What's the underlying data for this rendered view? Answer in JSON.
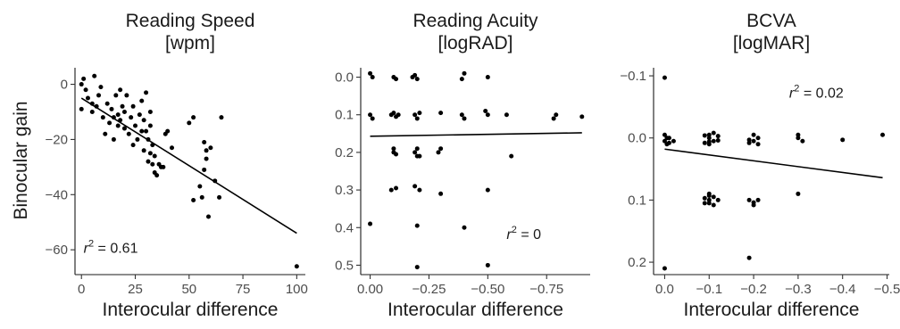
{
  "chart_data": [
    {
      "type": "scatter",
      "title": "Reading Speed",
      "subtitle": "[wpm]",
      "xlabel": "Interocular difference",
      "ylabel": "Binocular gain",
      "xlim": [
        -3,
        104
      ],
      "ylim": [
        -69,
        6
      ],
      "reversed_y": false,
      "xticks": [
        0,
        25,
        50,
        75,
        100
      ],
      "xtick_labels": [
        "0",
        "25",
        "50",
        "75",
        "100"
      ],
      "yticks": [
        0,
        -20,
        -40,
        -60
      ],
      "ytick_labels": [
        "0",
        "−20",
        "−40",
        "−60"
      ],
      "annotation": {
        "text": "r",
        "sup": "2",
        "rest": " = 0.61",
        "x": 1,
        "y": -61
      },
      "fit_line": {
        "x": [
          0,
          100
        ],
        "y": [
          -5,
          -54
        ]
      },
      "points": [
        [
          0,
          0
        ],
        [
          1,
          2
        ],
        [
          0,
          -9
        ],
        [
          2,
          -2
        ],
        [
          3,
          -5
        ],
        [
          5,
          -7
        ],
        [
          6,
          3
        ],
        [
          5,
          -10
        ],
        [
          7,
          -8
        ],
        [
          8,
          -4
        ],
        [
          9,
          -1
        ],
        [
          10,
          -12
        ],
        [
          11,
          -18
        ],
        [
          12,
          -7
        ],
        [
          13,
          -14
        ],
        [
          14,
          -9
        ],
        [
          15,
          -12
        ],
        [
          15,
          -20
        ],
        [
          16,
          -4
        ],
        [
          17,
          -11
        ],
        [
          17,
          -15
        ],
        [
          18,
          -13
        ],
        [
          18,
          -2
        ],
        [
          19,
          -8
        ],
        [
          20,
          -16
        ],
        [
          20,
          -10
        ],
        [
          21,
          -4
        ],
        [
          22,
          -18
        ],
        [
          23,
          -12
        ],
        [
          24,
          -8
        ],
        [
          24,
          -22
        ],
        [
          25,
          -15
        ],
        [
          26,
          -20
        ],
        [
          27,
          -11
        ],
        [
          28,
          -6
        ],
        [
          28,
          -17
        ],
        [
          29,
          -24
        ],
        [
          29,
          -13
        ],
        [
          30,
          -17
        ],
        [
          30,
          -3
        ],
        [
          31,
          -20
        ],
        [
          31,
          -28
        ],
        [
          32,
          -25
        ],
        [
          32,
          -15
        ],
        [
          32,
          -10
        ],
        [
          33,
          -29
        ],
        [
          33,
          -22
        ],
        [
          34,
          -32
        ],
        [
          34,
          -26
        ],
        [
          35,
          -33
        ],
        [
          36,
          -29
        ],
        [
          37,
          -30
        ],
        [
          38,
          -30
        ],
        [
          39,
          -18
        ],
        [
          40,
          -17
        ],
        [
          42,
          -23
        ],
        [
          50,
          -14
        ],
        [
          52,
          -12
        ],
        [
          52,
          -42
        ],
        [
          55,
          -37
        ],
        [
          56,
          -41
        ],
        [
          57,
          -21
        ],
        [
          57,
          -31
        ],
        [
          58,
          -24
        ],
        [
          58,
          -27
        ],
        [
          59,
          -48
        ],
        [
          60,
          -23
        ],
        [
          62,
          -35
        ],
        [
          64,
          -41
        ],
        [
          65,
          -12
        ],
        [
          100,
          -66
        ]
      ]
    },
    {
      "type": "scatter",
      "title": "Reading Acuity",
      "subtitle": "[logRAD]",
      "xlabel": "Interocular difference",
      "ylabel": "",
      "xlim": [
        0.04,
        -0.935
      ],
      "ylim": [
        0.525,
        -0.025
      ],
      "reversed_y": true,
      "xticks": [
        0.0,
        -0.25,
        -0.5,
        -0.75
      ],
      "xtick_labels": [
        "0.00",
        "−0.25",
        "−0.50",
        "−0.75"
      ],
      "yticks": [
        0.0,
        0.1,
        0.2,
        0.3,
        0.4,
        0.5
      ],
      "ytick_labels": [
        "0.0",
        "0.1",
        "0.2",
        "0.3",
        "0.4",
        "0.5"
      ],
      "annotation": {
        "text": "r",
        "sup": "2",
        "rest": " = 0",
        "x": -0.58,
        "y": 0.43
      },
      "fit_line": {
        "x": [
          0.0,
          -0.9
        ],
        "y": [
          0.157,
          0.148
        ]
      },
      "points": [
        [
          -0.01,
          0.0
        ],
        [
          0.0,
          -0.01
        ],
        [
          -0.1,
          0.0
        ],
        [
          -0.11,
          0.005
        ],
        [
          -0.18,
          0.0
        ],
        [
          -0.19,
          -0.005
        ],
        [
          -0.2,
          0.005
        ],
        [
          -0.39,
          0.005
        ],
        [
          -0.4,
          -0.01
        ],
        [
          -0.5,
          0.0
        ],
        [
          0.0,
          0.1
        ],
        [
          -0.01,
          0.11
        ],
        [
          -0.09,
          0.1
        ],
        [
          -0.1,
          0.095
        ],
        [
          -0.11,
          0.105
        ],
        [
          -0.12,
          0.1
        ],
        [
          -0.19,
          0.1
        ],
        [
          -0.2,
          0.11
        ],
        [
          -0.21,
          0.095
        ],
        [
          -0.3,
          0.095
        ],
        [
          -0.39,
          0.1
        ],
        [
          -0.4,
          0.11
        ],
        [
          -0.5,
          0.1
        ],
        [
          -0.49,
          0.09
        ],
        [
          -0.58,
          0.1
        ],
        [
          -0.78,
          0.11
        ],
        [
          -0.79,
          0.1
        ],
        [
          -0.9,
          0.105
        ],
        [
          -0.1,
          0.19
        ],
        [
          -0.1,
          0.2
        ],
        [
          -0.11,
          0.205
        ],
        [
          -0.19,
          0.2
        ],
        [
          -0.2,
          0.19
        ],
        [
          -0.21,
          0.21
        ],
        [
          -0.2,
          0.21
        ],
        [
          -0.3,
          0.19
        ],
        [
          -0.29,
          0.2
        ],
        [
          -0.6,
          0.21
        ],
        [
          -0.09,
          0.3
        ],
        [
          -0.11,
          0.295
        ],
        [
          -0.19,
          0.29
        ],
        [
          -0.21,
          0.3
        ],
        [
          -0.3,
          0.31
        ],
        [
          -0.5,
          0.3
        ],
        [
          0.0,
          0.39
        ],
        [
          -0.2,
          0.395
        ],
        [
          -0.4,
          0.4
        ],
        [
          -0.2,
          0.505
        ],
        [
          -0.5,
          0.5
        ]
      ]
    },
    {
      "type": "scatter",
      "title": "BCVA",
      "subtitle": "[logMAR]",
      "xlabel": "Interocular difference",
      "ylabel": "",
      "xlim": [
        0.025,
        -0.505
      ],
      "ylim": [
        0.22,
        -0.113
      ],
      "reversed_y": true,
      "xticks": [
        0.0,
        -0.1,
        -0.2,
        -0.3,
        -0.4,
        -0.5
      ],
      "xtick_labels": [
        "0.0",
        "−0.1",
        "−0.2",
        "−0.3",
        "−0.4",
        "−0.5"
      ],
      "yticks": [
        -0.1,
        0.0,
        0.1,
        0.2
      ],
      "ytick_labels": [
        "−0.1",
        "0.0",
        "0.1",
        "0.2"
      ],
      "annotation": {
        "text": "r",
        "sup": "2",
        "rest": " = 0.02",
        "x": -0.28,
        "y": -0.065
      },
      "fit_line": {
        "x": [
          0.0,
          -0.49
        ],
        "y": [
          0.018,
          0.064
        ]
      },
      "points": [
        [
          0.0,
          -0.097
        ],
        [
          0.0,
          -0.005
        ],
        [
          -0.005,
          0.0
        ],
        [
          0.0,
          0.005
        ],
        [
          -0.01,
          0.008
        ],
        [
          -0.01,
          0.0
        ],
        [
          -0.005,
          0.01
        ],
        [
          -0.02,
          0.005
        ],
        [
          -0.1,
          0.0
        ],
        [
          -0.1,
          -0.005
        ],
        [
          -0.11,
          0.005
        ],
        [
          -0.1,
          0.01
        ],
        [
          -0.12,
          -0.003
        ],
        [
          -0.09,
          0.008
        ],
        [
          -0.11,
          -0.008
        ],
        [
          -0.1,
          0.006
        ],
        [
          -0.12,
          0.004
        ],
        [
          -0.09,
          -0.004
        ],
        [
          -0.19,
          0.003
        ],
        [
          -0.2,
          -0.005
        ],
        [
          -0.21,
          0.0
        ],
        [
          -0.21,
          0.01
        ],
        [
          -0.2,
          0.005
        ],
        [
          -0.19,
          0.008
        ],
        [
          -0.3,
          0.0
        ],
        [
          -0.3,
          -0.005
        ],
        [
          -0.31,
          0.005
        ],
        [
          -0.4,
          0.003
        ],
        [
          -0.49,
          -0.005
        ],
        [
          -0.1,
          0.09
        ],
        [
          -0.1,
          0.1
        ],
        [
          -0.11,
          0.095
        ],
        [
          -0.1,
          0.105
        ],
        [
          -0.09,
          0.105
        ],
        [
          -0.12,
          0.1
        ],
        [
          -0.11,
          0.108
        ],
        [
          -0.09,
          0.097
        ],
        [
          -0.1,
          0.093
        ],
        [
          -0.19,
          0.1
        ],
        [
          -0.2,
          0.108
        ],
        [
          -0.21,
          0.1
        ],
        [
          -0.2,
          0.104
        ],
        [
          -0.3,
          0.09
        ],
        [
          0.0,
          0.21
        ],
        [
          -0.19,
          0.193
        ]
      ]
    }
  ]
}
